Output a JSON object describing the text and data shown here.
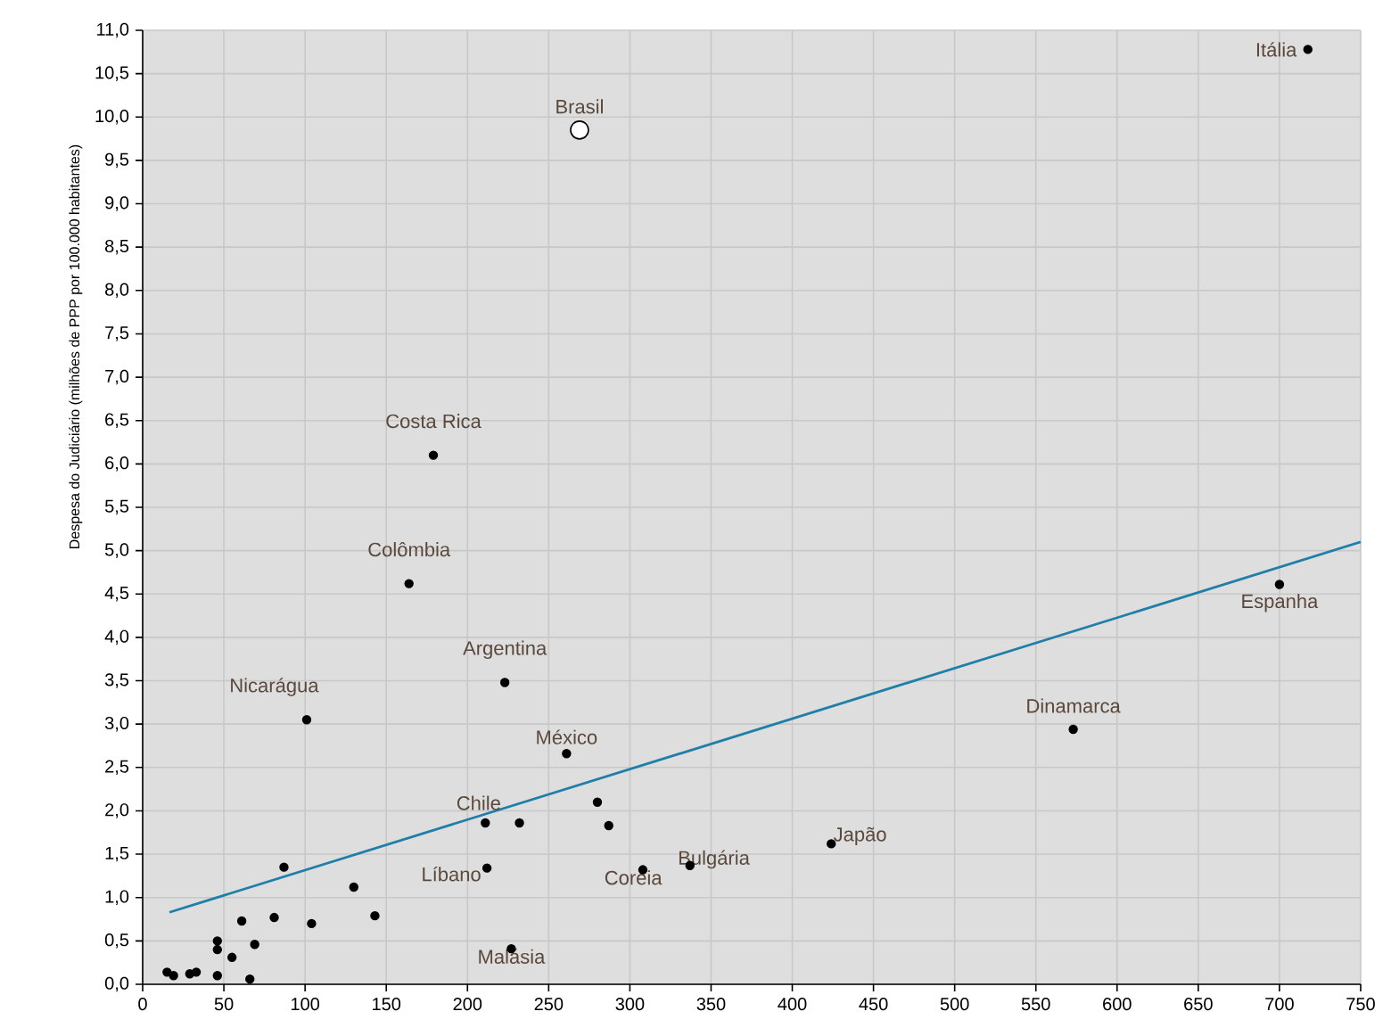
{
  "chart_data": {
    "type": "scatter",
    "ylabel": "Despesa do Judiciário (milhões de PPP por 100.000 habitantes)",
    "xlim": [
      0,
      750
    ],
    "xticks": [
      0,
      50,
      100,
      150,
      200,
      250,
      300,
      350,
      400,
      450,
      500,
      550,
      600,
      650,
      700,
      750
    ],
    "ylim": [
      0,
      11
    ],
    "yticks": [
      {
        "value": 0,
        "label": "0,0"
      },
      {
        "value": 0.5,
        "label": "0,5"
      },
      {
        "value": 1,
        "label": "1,0"
      },
      {
        "value": 1.5,
        "label": "1,5"
      },
      {
        "value": 2,
        "label": "2,0"
      },
      {
        "value": 2.5,
        "label": "2,5"
      },
      {
        "value": 3,
        "label": "3,0"
      },
      {
        "value": 3.5,
        "label": "3,5"
      },
      {
        "value": 4,
        "label": "4,0"
      },
      {
        "value": 4.5,
        "label": "4,5"
      },
      {
        "value": 5,
        "label": "5,0"
      },
      {
        "value": 5.5,
        "label": "5,5"
      },
      {
        "value": 6,
        "label": "6,0"
      },
      {
        "value": 6.5,
        "label": "6,5"
      },
      {
        "value": 7,
        "label": "7,0"
      },
      {
        "value": 7.5,
        "label": "7,5"
      },
      {
        "value": 8,
        "label": "8,0"
      },
      {
        "value": 8.5,
        "label": "8,5"
      },
      {
        "value": 9,
        "label": "9,0"
      },
      {
        "value": 9.5,
        "label": "9,5"
      },
      {
        "value": 10,
        "label": "10,0"
      },
      {
        "value": 10.5,
        "label": "10,5"
      },
      {
        "value": 11,
        "label": "11,0"
      }
    ],
    "grid": true,
    "series": [
      {
        "marker": "circle",
        "color": "#000000",
        "x": [
          717.5,
          179,
          164,
          101,
          223,
          261,
          280,
          287,
          211,
          232,
          212,
          308,
          337,
          424,
          573,
          700,
          87,
          130,
          143,
          104,
          81,
          61,
          69,
          55,
          46,
          46,
          46,
          66,
          33,
          29,
          15,
          19,
          227
        ],
        "values": [
          10.78,
          6.1,
          4.62,
          3.05,
          3.48,
          2.66,
          2.1,
          1.83,
          1.86,
          1.86,
          1.34,
          1.32,
          1.37,
          1.62,
          2.94,
          4.61,
          1.35,
          1.12,
          0.79,
          0.7,
          0.77,
          0.73,
          0.46,
          0.31,
          0.5,
          0.4,
          0.1,
          0.06,
          0.14,
          0.12,
          0.14,
          0.1,
          0.41
        ]
      },
      {
        "marker": "circle",
        "color": "#ffffff",
        "x": [
          269
        ],
        "values": [
          9.85
        ]
      },
      {
        "type": "line",
        "marker": "none",
        "color": "#1f7fa8",
        "x": [
          16.5,
          750
        ],
        "values": [
          0.83,
          5.1
        ]
      }
    ],
    "annotations": [
      {
        "text": "Itália",
        "x": 717.5,
        "y": 10.78
      },
      {
        "text": "Brasil",
        "x": 269,
        "y": 9.85
      },
      {
        "text": "Costa Rica",
        "x": 179,
        "y": 6.1
      },
      {
        "text": "Colômbia",
        "x": 164,
        "y": 4.62
      },
      {
        "text": "Nicarágua",
        "x": 101,
        "y": 3.05
      },
      {
        "text": "Argentina",
        "x": 223,
        "y": 3.48
      },
      {
        "text": "México",
        "x": 261,
        "y": 2.66
      },
      {
        "text": "Chile",
        "x": 211,
        "y": 1.86
      },
      {
        "text": "Líbano",
        "x": 212,
        "y": 1.34
      },
      {
        "text": "Malásia",
        "x": 227,
        "y": 0.41
      },
      {
        "text": "Coréia",
        "x": 308,
        "y": 1.32
      },
      {
        "text": "Bulgária",
        "x": 337,
        "y": 1.37
      },
      {
        "text": "Japão",
        "x": 424,
        "y": 1.62
      },
      {
        "text": "Dinamarca",
        "x": 573,
        "y": 2.94
      },
      {
        "text": "Espanha",
        "x": 700,
        "y": 4.61
      }
    ]
  }
}
